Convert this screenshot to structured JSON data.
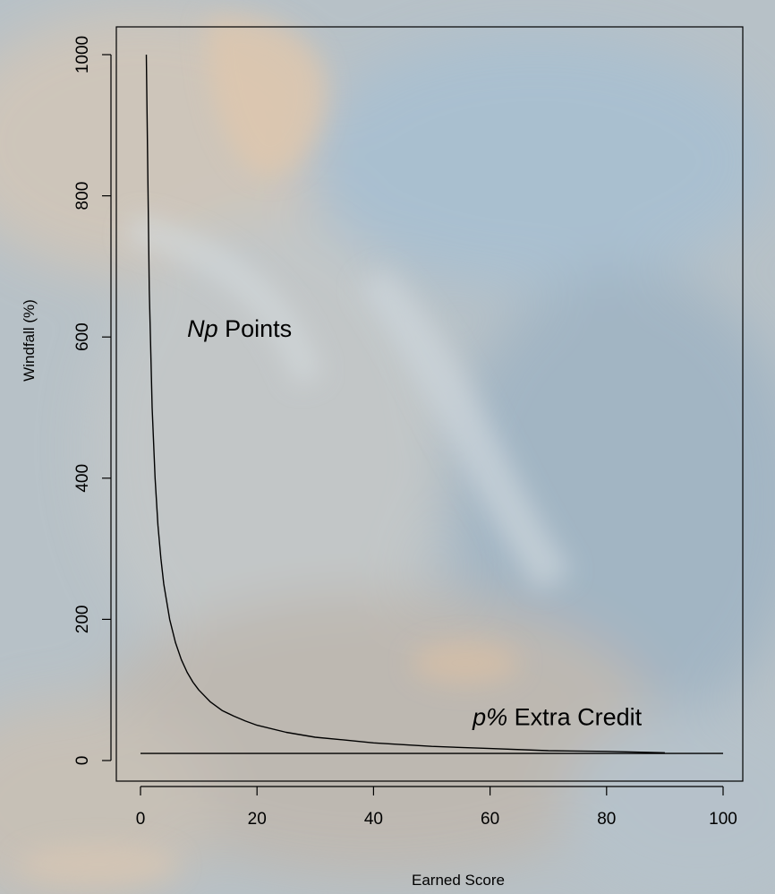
{
  "colors": {
    "background_base": "#b9c3c9",
    "sand_warm": "#d7c2ad",
    "water_blue": "#a9c2d4",
    "shadow": "#8f9ba3",
    "line": "#000000"
  },
  "chart_data": {
    "type": "line",
    "title": "",
    "xlabel": "Earned Score",
    "ylabel": "Windfall (%)",
    "xlim": [
      0,
      100
    ],
    "ylim": [
      0,
      1000
    ],
    "xticks": [
      "0",
      "20",
      "40",
      "60",
      "80",
      "100"
    ],
    "yticks": [
      "0",
      "200",
      "400",
      "600",
      "800",
      "1000"
    ],
    "xtick_values": [
      0,
      20,
      40,
      60,
      80,
      100
    ],
    "ytick_values": [
      0,
      200,
      400,
      600,
      800,
      1000
    ],
    "grid": false,
    "series": [
      {
        "name": "Np Points",
        "x": [
          1,
          1.5,
          2,
          2.5,
          3,
          3.5,
          4,
          5,
          6,
          7,
          8,
          9,
          10,
          12,
          14,
          16,
          18,
          20,
          25,
          30,
          35,
          40,
          50,
          60,
          70,
          80,
          90
        ],
        "y": [
          1000,
          667,
          500,
          400,
          333,
          286,
          250,
          200,
          167,
          143,
          125,
          111,
          100,
          83,
          71,
          63,
          56,
          50,
          40,
          33,
          29,
          25,
          20,
          17,
          14,
          13,
          11
        ]
      },
      {
        "name": "p% Extra Credit",
        "x": [
          0,
          100
        ],
        "y": [
          10,
          10
        ]
      }
    ],
    "annotations": [
      {
        "id": "np",
        "italic": "Np",
        "text": " Points",
        "x": 8,
        "y": 600
      },
      {
        "id": "pct",
        "italic": "p%",
        "text": " Extra Credit",
        "x": 57,
        "y": 50
      }
    ]
  }
}
